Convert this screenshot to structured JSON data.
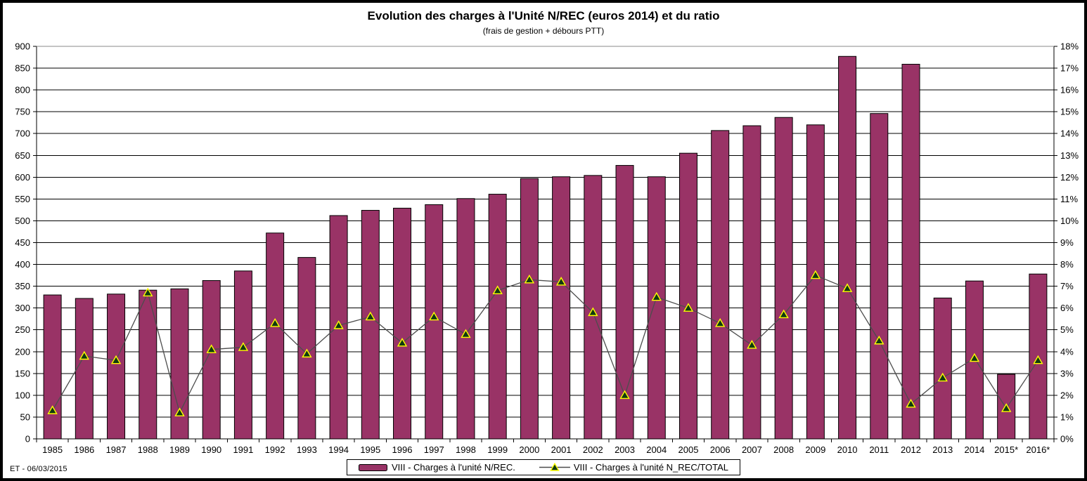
{
  "title": "Evolution des charges à l'Unité N/REC (euros 2014) et du ratio",
  "subtitle": "(frais de gestion + débours PTT)",
  "footer_note": "ET -  06/03/2015",
  "legend": [
    {
      "label": "VIII - Charges à l'unité N/REC.",
      "type": "bar"
    },
    {
      "label": "VIII - Charges à l'unité N_REC/TOTAL",
      "type": "line"
    }
  ],
  "colors": {
    "bar": "#993366",
    "bar_border": "#000000",
    "line": "#4d4d4d",
    "marker_fill": "#0f3a0f",
    "marker_border": "#ffff00",
    "grid": "#000000",
    "frame_top": "#888888",
    "background": "#ffffff"
  },
  "chart_data": {
    "type": "bar",
    "title": "Evolution des charges à l'Unité N/REC (euros 2014) et du ratio",
    "subtitle": "(frais de gestion + débours PTT)",
    "grid": true,
    "legend_position": "bottom",
    "categories": [
      "1985",
      "1986",
      "1987",
      "1988",
      "1989",
      "1990",
      "1991",
      "1992",
      "1993",
      "1994",
      "1995",
      "1996",
      "1997",
      "1998",
      "1999",
      "2000",
      "2001",
      "2002",
      "2003",
      "2004",
      "2005",
      "2006",
      "2007",
      "2008",
      "2009",
      "2010",
      "2011",
      "2012",
      "2013",
      "2014",
      "2015*",
      "2016*"
    ],
    "series": [
      {
        "name": "VIII - Charges à l'unité N/REC.",
        "type": "bar",
        "axis": "left",
        "values": [
          330,
          322,
          332,
          341,
          344,
          363,
          385,
          472,
          416,
          512,
          524,
          529,
          537,
          551,
          561,
          597,
          601,
          604,
          627,
          601,
          655,
          707,
          718,
          737,
          720,
          877,
          746,
          859,
          323,
          362,
          148,
          378
        ]
      },
      {
        "name": "VIII - Charges à l'unité N_REC/TOTAL",
        "type": "line",
        "axis": "right",
        "values": [
          1.3,
          3.8,
          3.6,
          6.7,
          1.2,
          4.1,
          4.2,
          5.3,
          3.9,
          5.2,
          5.6,
          4.4,
          5.6,
          4.8,
          6.8,
          7.3,
          7.2,
          5.8,
          2.0,
          6.5,
          6.0,
          5.3,
          4.3,
          5.7,
          7.5,
          6.9,
          4.5,
          1.6,
          2.8,
          3.7,
          1.4,
          3.6
        ]
      }
    ],
    "left_axis": {
      "min": 0,
      "max": 900,
      "step": 50
    },
    "right_axis": {
      "min": 0,
      "max": 18,
      "step": 1,
      "suffix": "%"
    }
  }
}
